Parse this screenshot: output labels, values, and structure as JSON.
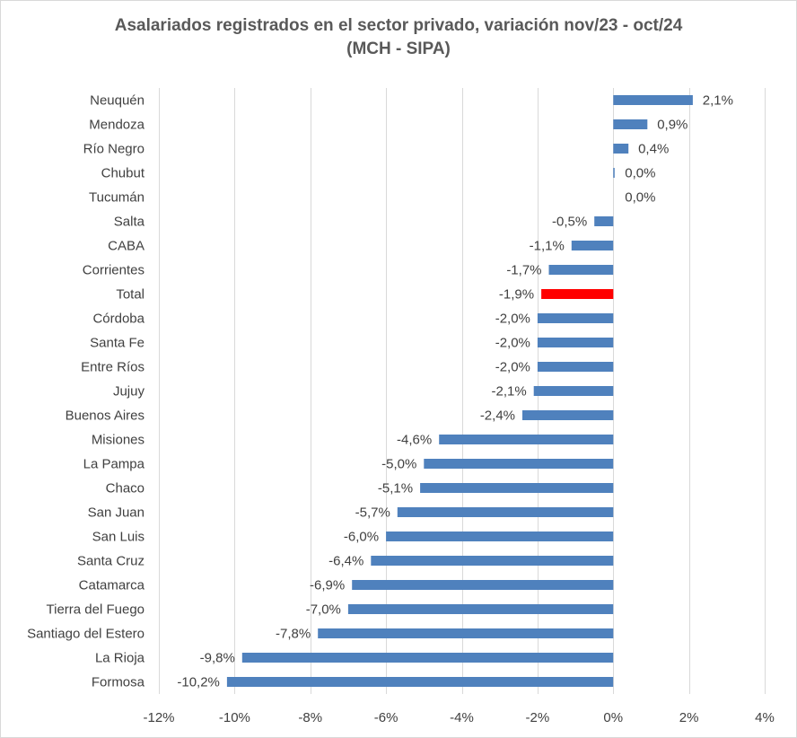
{
  "chart_data": {
    "type": "bar",
    "orientation": "horizontal",
    "title": "Asalariados registrados en el sector privado, variación nov/23 - oct/24",
    "subtitle": "(MCH - SIPA)",
    "categories": [
      "Neuquén",
      "Mendoza",
      "Río Negro",
      "Chubut",
      "Tucumán",
      "Salta",
      "CABA",
      "Corrientes",
      "Total",
      "Córdoba",
      "Santa Fe",
      "Entre Ríos",
      "Jujuy",
      "Buenos Aires",
      "Misiones",
      "La Pampa",
      "Chaco",
      "San Juan",
      "San Luis",
      "Santa Cruz",
      "Catamarca",
      "Tierra del Fuego",
      "Santiago del Estero",
      "La Rioja",
      "Formosa"
    ],
    "values": [
      2.1,
      0.9,
      0.4,
      0.0,
      0.0,
      -0.5,
      -1.1,
      -1.7,
      -1.9,
      -2.0,
      -2.0,
      -2.0,
      -2.1,
      -2.4,
      -4.6,
      -5.0,
      -5.1,
      -5.7,
      -6.0,
      -6.4,
      -6.9,
      -7.0,
      -7.8,
      -9.8,
      -10.2
    ],
    "data_labels": [
      "2,1%",
      "0,9%",
      "0,4%",
      "0,0%",
      "0,0%",
      "-0,5%",
      "-1,1%",
      "-1,7%",
      "-1,9%",
      "-2,0%",
      "-2,0%",
      "-2,0%",
      "-2,1%",
      "-2,4%",
      "-4,6%",
      "-5,0%",
      "-5,1%",
      "-5,7%",
      "-6,0%",
      "-6,4%",
      "-6,9%",
      "-7,0%",
      "-7,8%",
      "-9,8%",
      "-10,2%"
    ],
    "highlight_category": "Total",
    "xlim": [
      -12,
      4
    ],
    "x_ticks": [
      -12,
      -10,
      -8,
      -6,
      -4,
      -2,
      0,
      2,
      4
    ],
    "x_tick_labels": [
      "-12%",
      "-10%",
      "-8%",
      "-6%",
      "-4%",
      "-2%",
      "0%",
      "2%",
      "4%"
    ],
    "xlabel": "",
    "ylabel": "",
    "grid": true,
    "legend": "none",
    "colors": {
      "bar": "#4f81bd",
      "highlight": "#ff0000",
      "grid": "#d9d9d9",
      "text": "#404040",
      "title": "#595959"
    }
  }
}
